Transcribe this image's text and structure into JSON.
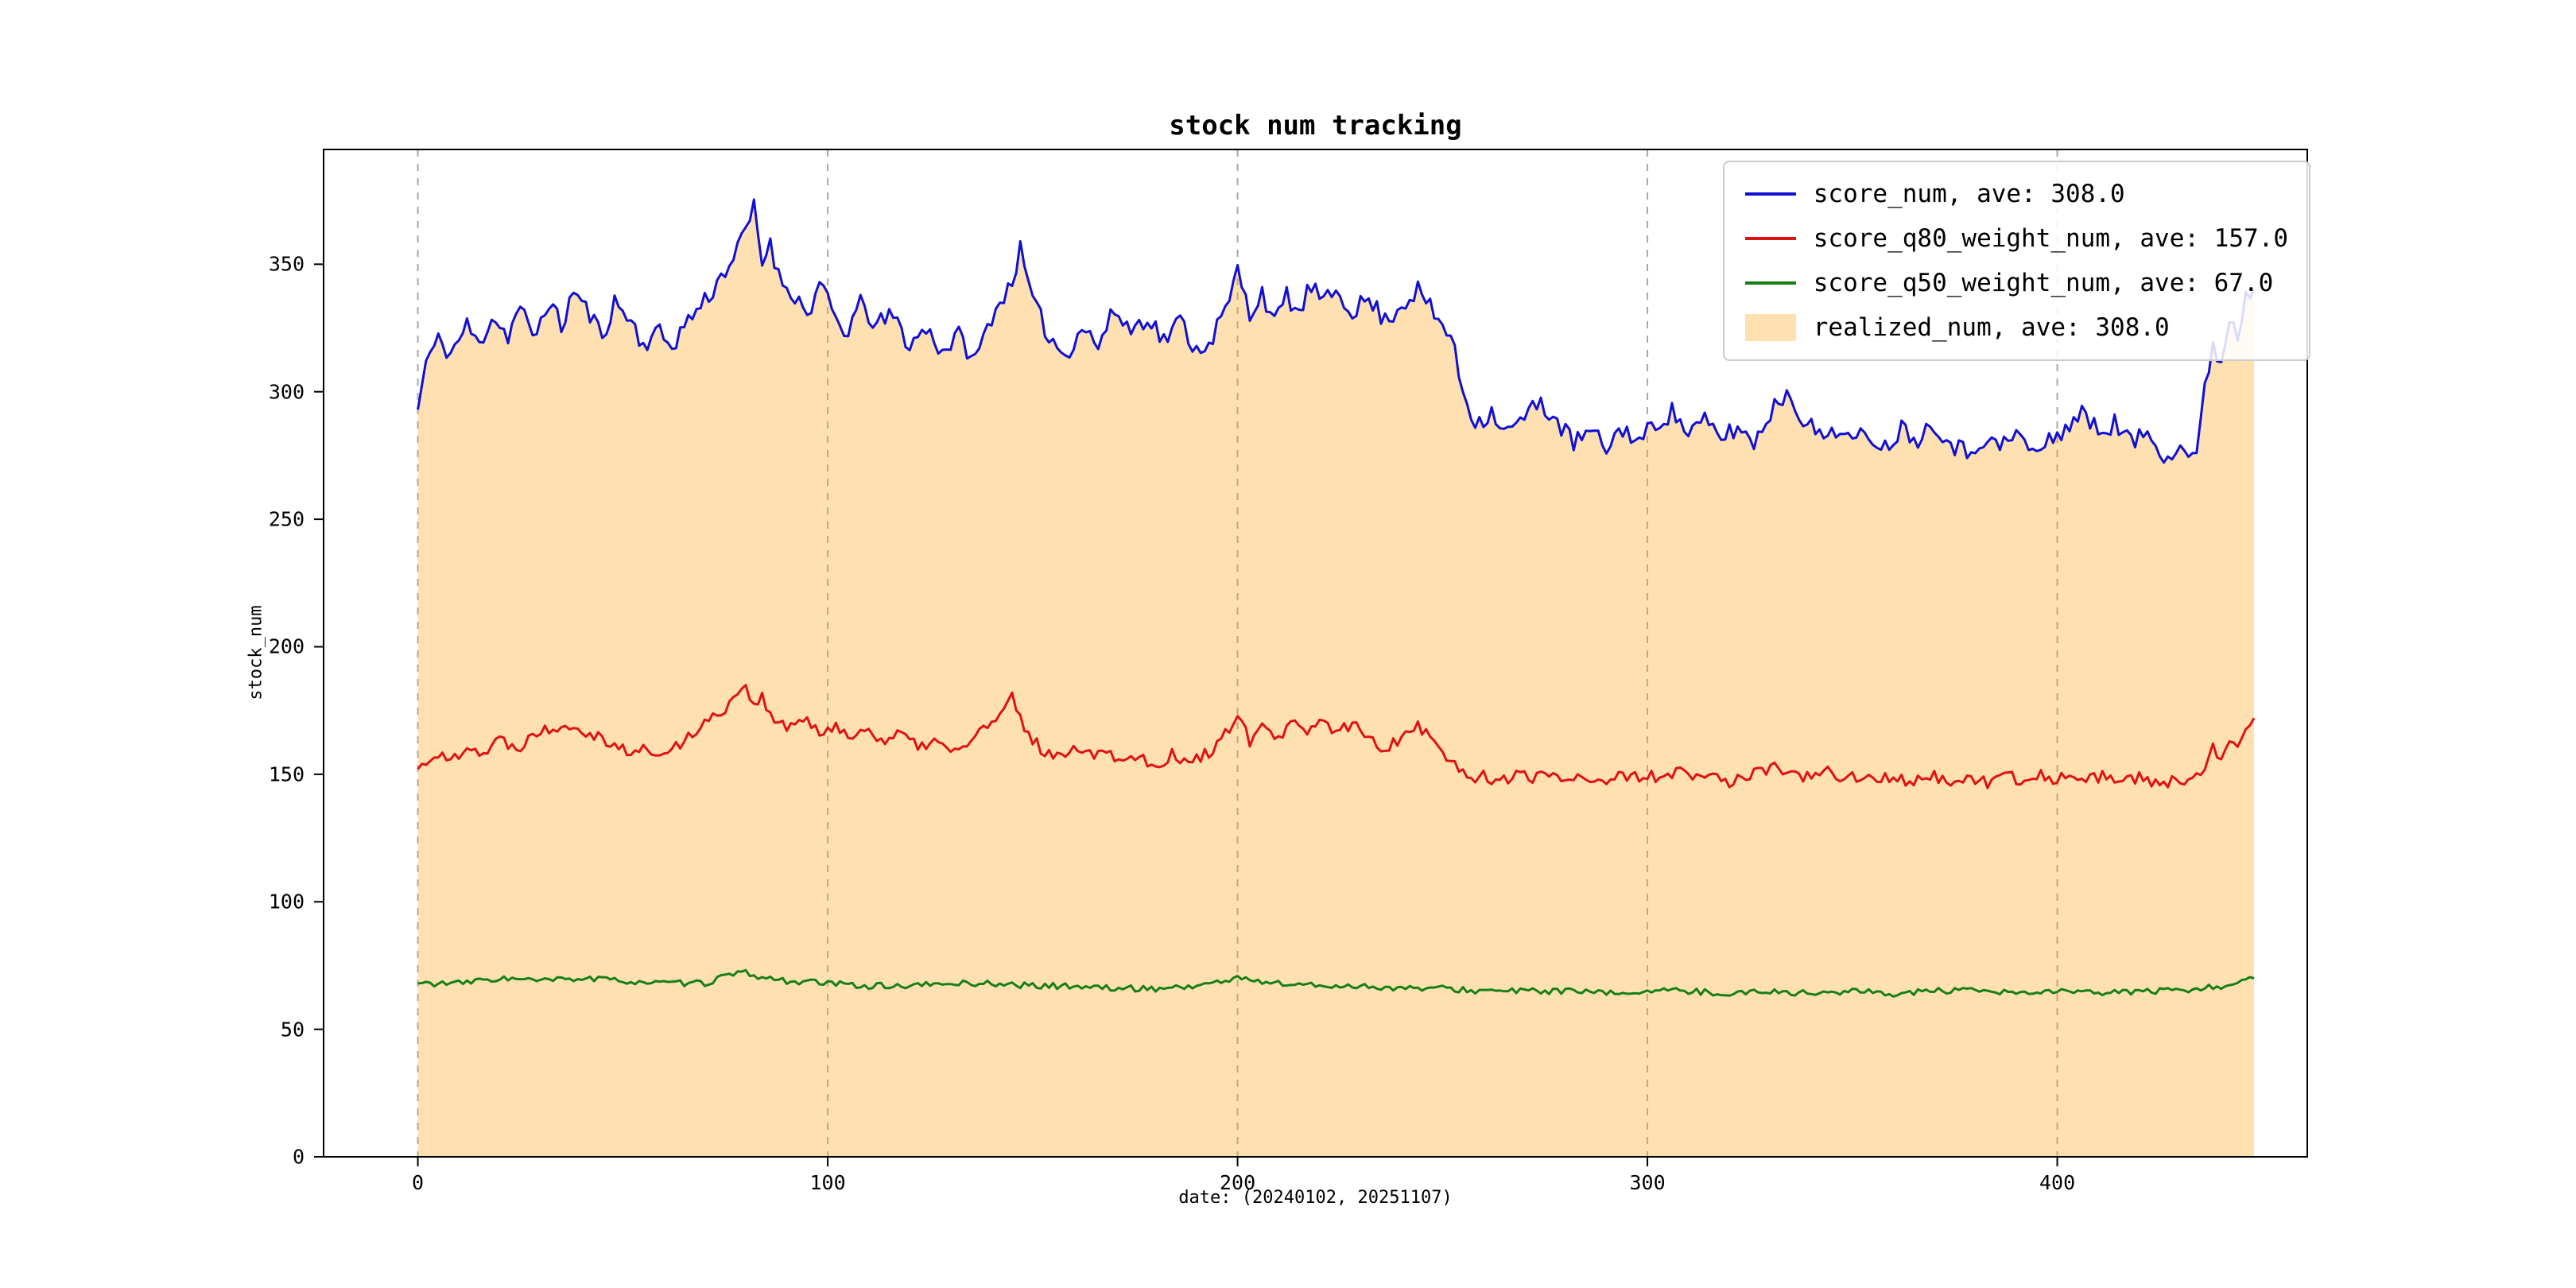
{
  "chart_data": {
    "type": "line",
    "title": "stock num tracking",
    "xlabel": "date: (20240102, 20251107)",
    "ylabel": "stock_num",
    "xlim": [
      -23,
      461
    ],
    "ylim": [
      0,
      395
    ],
    "xticks": [
      0,
      100,
      200,
      300,
      400
    ],
    "yticks": [
      0,
      50,
      100,
      150,
      200,
      250,
      300,
      350
    ],
    "grid": {
      "vertical_dashed_at": [
        0,
        100,
        200,
        300,
        400
      ],
      "color": "#a8a8a8"
    },
    "legend_position": "upper right",
    "axis_color": "#000000",
    "fill_opacity": 0.35,
    "series": [
      {
        "name": "score_num",
        "label": "score_num, ave: 308.0",
        "average": 308.0,
        "type": "line",
        "color": "#0f0fd6",
        "noise": 4,
        "seed": 11,
        "keypoints": [
          [
            0,
            293
          ],
          [
            2,
            312
          ],
          [
            5,
            320
          ],
          [
            8,
            315
          ],
          [
            12,
            326
          ],
          [
            15,
            318
          ],
          [
            18,
            330
          ],
          [
            22,
            322
          ],
          [
            25,
            334
          ],
          [
            28,
            320
          ],
          [
            32,
            336
          ],
          [
            35,
            325
          ],
          [
            38,
            340
          ],
          [
            42,
            330
          ],
          [
            45,
            322
          ],
          [
            48,
            335
          ],
          [
            52,
            328
          ],
          [
            55,
            318
          ],
          [
            58,
            324
          ],
          [
            62,
            318
          ],
          [
            65,
            326
          ],
          [
            68,
            332
          ],
          [
            72,
            340
          ],
          [
            75,
            348
          ],
          [
            78,
            355
          ],
          [
            82,
            372
          ],
          [
            84,
            350
          ],
          [
            86,
            360
          ],
          [
            88,
            345
          ],
          [
            92,
            338
          ],
          [
            95,
            330
          ],
          [
            98,
            342
          ],
          [
            100,
            335
          ],
          [
            104,
            322
          ],
          [
            108,
            334
          ],
          [
            112,
            326
          ],
          [
            116,
            330
          ],
          [
            120,
            318
          ],
          [
            124,
            325
          ],
          [
            128,
            316
          ],
          [
            132,
            322
          ],
          [
            136,
            312
          ],
          [
            140,
            330
          ],
          [
            144,
            340
          ],
          [
            147,
            355
          ],
          [
            150,
            335
          ],
          [
            154,
            322
          ],
          [
            158,
            314
          ],
          [
            162,
            326
          ],
          [
            166,
            318
          ],
          [
            170,
            332
          ],
          [
            174,
            324
          ],
          [
            178,
            330
          ],
          [
            182,
            320
          ],
          [
            186,
            328
          ],
          [
            190,
            316
          ],
          [
            194,
            322
          ],
          [
            198,
            335
          ],
          [
            200,
            348
          ],
          [
            203,
            330
          ],
          [
            206,
            340
          ],
          [
            209,
            326
          ],
          [
            212,
            338
          ],
          [
            215,
            330
          ],
          [
            218,
            342
          ],
          [
            221,
            334
          ],
          [
            224,
            340
          ],
          [
            228,
            332
          ],
          [
            232,
            336
          ],
          [
            236,
            328
          ],
          [
            240,
            334
          ],
          [
            244,
            340
          ],
          [
            248,
            330
          ],
          [
            252,
            322
          ],
          [
            255,
            300
          ],
          [
            258,
            288
          ],
          [
            262,
            292
          ],
          [
            266,
            284
          ],
          [
            270,
            290
          ],
          [
            274,
            296
          ],
          [
            278,
            288
          ],
          [
            282,
            280
          ],
          [
            286,
            284
          ],
          [
            290,
            278
          ],
          [
            294,
            286
          ],
          [
            298,
            280
          ],
          [
            302,
            288
          ],
          [
            306,
            292
          ],
          [
            310,
            284
          ],
          [
            314,
            288
          ],
          [
            318,
            282
          ],
          [
            322,
            286
          ],
          [
            326,
            280
          ],
          [
            330,
            292
          ],
          [
            334,
            300
          ],
          [
            338,
            290
          ],
          [
            342,
            282
          ],
          [
            346,
            286
          ],
          [
            350,
            280
          ],
          [
            354,
            284
          ],
          [
            358,
            278
          ],
          [
            362,
            286
          ],
          [
            366,
            282
          ],
          [
            370,
            288
          ],
          [
            374,
            280
          ],
          [
            378,
            276
          ],
          [
            382,
            282
          ],
          [
            386,
            278
          ],
          [
            390,
            284
          ],
          [
            394,
            276
          ],
          [
            398,
            280
          ],
          [
            402,
            286
          ],
          [
            406,
            292
          ],
          [
            410,
            284
          ],
          [
            414,
            288
          ],
          [
            418,
            280
          ],
          [
            422,
            284
          ],
          [
            426,
            276
          ],
          [
            430,
            278
          ],
          [
            434,
            275
          ],
          [
            436,
            300
          ],
          [
            438,
            320
          ],
          [
            440,
            310
          ],
          [
            442,
            330
          ],
          [
            444,
            322
          ],
          [
            446,
            338
          ],
          [
            448,
            340
          ]
        ]
      },
      {
        "name": "score_q80_weight_num",
        "label": "score_q80_weight_num, ave: 157.0",
        "average": 157.0,
        "type": "line",
        "color": "#e01212",
        "noise": 2.5,
        "seed": 22,
        "keypoints": [
          [
            0,
            152
          ],
          [
            4,
            158
          ],
          [
            8,
            155
          ],
          [
            12,
            162
          ],
          [
            16,
            158
          ],
          [
            20,
            164
          ],
          [
            24,
            160
          ],
          [
            28,
            166
          ],
          [
            32,
            168
          ],
          [
            36,
            170
          ],
          [
            40,
            168
          ],
          [
            44,
            165
          ],
          [
            48,
            162
          ],
          [
            52,
            158
          ],
          [
            56,
            160
          ],
          [
            60,
            157
          ],
          [
            64,
            162
          ],
          [
            68,
            168
          ],
          [
            72,
            172
          ],
          [
            76,
            178
          ],
          [
            80,
            186
          ],
          [
            82,
            176
          ],
          [
            84,
            182
          ],
          [
            86,
            172
          ],
          [
            90,
            168
          ],
          [
            94,
            172
          ],
          [
            98,
            165
          ],
          [
            102,
            170
          ],
          [
            106,
            164
          ],
          [
            110,
            168
          ],
          [
            114,
            163
          ],
          [
            118,
            166
          ],
          [
            122,
            160
          ],
          [
            126,
            164
          ],
          [
            130,
            158
          ],
          [
            134,
            162
          ],
          [
            138,
            168
          ],
          [
            142,
            172
          ],
          [
            145,
            180
          ],
          [
            148,
            168
          ],
          [
            152,
            160
          ],
          [
            156,
            156
          ],
          [
            160,
            162
          ],
          [
            164,
            158
          ],
          [
            168,
            160
          ],
          [
            172,
            155
          ],
          [
            176,
            158
          ],
          [
            180,
            153
          ],
          [
            184,
            158
          ],
          [
            188,
            154
          ],
          [
            192,
            158
          ],
          [
            196,
            162
          ],
          [
            200,
            175
          ],
          [
            203,
            162
          ],
          [
            206,
            168
          ],
          [
            210,
            164
          ],
          [
            214,
            170
          ],
          [
            217,
            165
          ],
          [
            220,
            172
          ],
          [
            224,
            166
          ],
          [
            228,
            170
          ],
          [
            232,
            164
          ],
          [
            236,
            160
          ],
          [
            240,
            165
          ],
          [
            244,
            170
          ],
          [
            248,
            162
          ],
          [
            252,
            156
          ],
          [
            256,
            148
          ],
          [
            260,
            150
          ],
          [
            264,
            147
          ],
          [
            268,
            150
          ],
          [
            272,
            148
          ],
          [
            276,
            151
          ],
          [
            280,
            148
          ],
          [
            284,
            150
          ],
          [
            288,
            147
          ],
          [
            292,
            149
          ],
          [
            296,
            148
          ],
          [
            300,
            150
          ],
          [
            304,
            148
          ],
          [
            308,
            151
          ],
          [
            312,
            148
          ],
          [
            316,
            150
          ],
          [
            320,
            147
          ],
          [
            324,
            149
          ],
          [
            328,
            151
          ],
          [
            332,
            153
          ],
          [
            336,
            150
          ],
          [
            340,
            148
          ],
          [
            344,
            151
          ],
          [
            348,
            148
          ],
          [
            352,
            150
          ],
          [
            356,
            147
          ],
          [
            360,
            149
          ],
          [
            364,
            147
          ],
          [
            368,
            150
          ],
          [
            372,
            148
          ],
          [
            376,
            146
          ],
          [
            380,
            148
          ],
          [
            384,
            146
          ],
          [
            388,
            149
          ],
          [
            392,
            147
          ],
          [
            396,
            150
          ],
          [
            400,
            148
          ],
          [
            404,
            151
          ],
          [
            408,
            148
          ],
          [
            412,
            150
          ],
          [
            416,
            147
          ],
          [
            420,
            149
          ],
          [
            424,
            146
          ],
          [
            428,
            147
          ],
          [
            432,
            146
          ],
          [
            436,
            152
          ],
          [
            438,
            160
          ],
          [
            440,
            156
          ],
          [
            442,
            165
          ],
          [
            444,
            162
          ],
          [
            446,
            170
          ],
          [
            448,
            172
          ]
        ]
      },
      {
        "name": "score_q50_weight_num",
        "label": "score_q50_weight_num, ave: 67.0",
        "average": 67.0,
        "type": "line",
        "color": "#168016",
        "noise": 1.2,
        "seed": 33,
        "keypoints": [
          [
            0,
            68
          ],
          [
            10,
            68
          ],
          [
            20,
            70
          ],
          [
            30,
            69
          ],
          [
            40,
            70
          ],
          [
            50,
            69
          ],
          [
            60,
            68
          ],
          [
            70,
            68
          ],
          [
            75,
            71
          ],
          [
            80,
            72
          ],
          [
            85,
            70
          ],
          [
            90,
            69
          ],
          [
            100,
            68
          ],
          [
            110,
            67
          ],
          [
            120,
            67
          ],
          [
            130,
            68
          ],
          [
            140,
            68
          ],
          [
            150,
            67
          ],
          [
            160,
            67
          ],
          [
            170,
            66
          ],
          [
            180,
            66
          ],
          [
            190,
            67
          ],
          [
            200,
            70
          ],
          [
            210,
            68
          ],
          [
            220,
            67
          ],
          [
            230,
            67
          ],
          [
            240,
            66
          ],
          [
            250,
            66
          ],
          [
            260,
            65
          ],
          [
            270,
            65
          ],
          [
            280,
            65
          ],
          [
            290,
            64
          ],
          [
            300,
            65
          ],
          [
            310,
            65
          ],
          [
            320,
            64
          ],
          [
            330,
            65
          ],
          [
            340,
            64
          ],
          [
            350,
            65
          ],
          [
            360,
            64
          ],
          [
            370,
            65
          ],
          [
            380,
            65
          ],
          [
            390,
            64
          ],
          [
            400,
            65
          ],
          [
            410,
            64
          ],
          [
            420,
            65
          ],
          [
            430,
            65
          ],
          [
            440,
            67
          ],
          [
            445,
            69
          ],
          [
            448,
            70
          ]
        ]
      },
      {
        "name": "realized_num",
        "label": "realized_num, ave: 308.0",
        "average": 308.0,
        "type": "fill",
        "color": "#ffa520",
        "follows": "score_num"
      }
    ]
  }
}
